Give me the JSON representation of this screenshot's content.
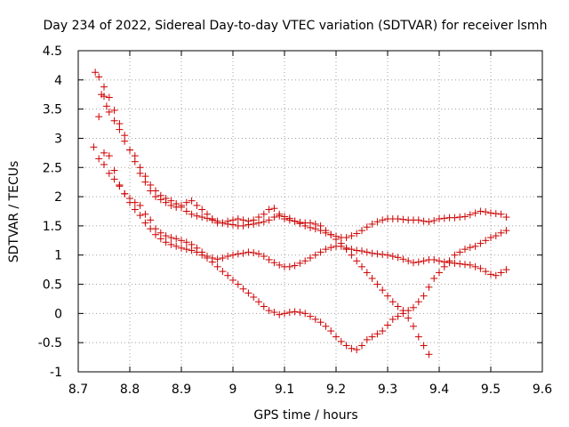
{
  "chart_data": {
    "type": "scatter",
    "title": "Day 234 of 2022, Sidereal Day-to-day VTEC variation (SDTVAR) for receiver lsmh",
    "xlabel": "GPS time / hours",
    "ylabel": "SDTVAR / TECUs",
    "xlim": [
      8.7,
      9.6
    ],
    "ylim": [
      -1,
      4.5
    ],
    "x_ticks": [
      8.7,
      8.8,
      8.9,
      9.0,
      9.1,
      9.2,
      9.3,
      9.4,
      9.5,
      9.6
    ],
    "x_tick_labels": [
      "8.7",
      "8.8",
      "8.9",
      "9",
      "9.1",
      "9.2",
      "9.3",
      "9.4",
      "9.5",
      "9.6"
    ],
    "y_ticks": [
      -1,
      -0.5,
      0,
      0.5,
      1,
      1.5,
      2,
      2.5,
      3,
      3.5,
      4,
      4.5
    ],
    "y_tick_labels": [
      "-1",
      "-0.5",
      "0",
      "0.5",
      "1",
      "1.5",
      "2",
      "2.5",
      "3",
      "3.5",
      "4",
      "4.5"
    ],
    "grid": true,
    "marker": "+",
    "marker_color": "#cc0000",
    "series": [
      {
        "name": "series-1",
        "x": [
          8.733,
          8.74,
          8.75,
          8.76,
          8.77,
          8.78,
          8.79,
          8.8,
          8.81,
          8.82,
          8.83,
          8.84,
          8.85,
          8.86,
          8.87,
          8.88,
          8.89,
          8.9,
          8.91,
          8.92,
          8.93,
          8.94,
          8.95,
          8.96,
          8.97,
          8.98,
          8.99,
          9.0,
          9.01,
          9.02,
          9.03,
          9.04,
          9.05,
          9.06,
          9.07,
          9.08,
          9.09,
          9.1,
          9.11,
          9.12,
          9.13,
          9.14,
          9.15,
          9.16,
          9.17,
          9.18,
          9.19,
          9.2,
          9.21,
          9.22,
          9.23,
          9.24,
          9.25,
          9.26,
          9.27,
          9.28,
          9.29,
          9.3,
          9.31,
          9.32,
          9.33,
          9.34,
          9.35,
          9.36,
          9.37,
          9.38
        ],
        "y": [
          4.13,
          4.05,
          3.88,
          3.7,
          3.48,
          3.25,
          3.05,
          2.8,
          2.6,
          2.4,
          2.25,
          2.1,
          2.0,
          1.95,
          1.9,
          1.85,
          1.82,
          1.85,
          1.9,
          1.93,
          1.85,
          1.78,
          1.7,
          1.62,
          1.55,
          1.55,
          1.58,
          1.6,
          1.62,
          1.6,
          1.58,
          1.6,
          1.65,
          1.7,
          1.78,
          1.8,
          1.7,
          1.62,
          1.6,
          1.58,
          1.56,
          1.55,
          1.55,
          1.53,
          1.5,
          1.42,
          1.35,
          1.27,
          1.2,
          1.1,
          1.0,
          0.9,
          0.8,
          0.7,
          0.6,
          0.5,
          0.4,
          0.3,
          0.2,
          0.12,
          0.05,
          -0.08,
          -0.22,
          -0.4,
          -0.55,
          -0.7
        ]
      },
      {
        "name": "series-2",
        "x": [
          8.74,
          8.745,
          8.75,
          8.755,
          8.76,
          8.77,
          8.78,
          8.79,
          8.8,
          8.81,
          8.82,
          8.83,
          8.84,
          8.85,
          8.86,
          8.87,
          8.88,
          8.89,
          8.9,
          8.91,
          8.92,
          8.93,
          8.94,
          8.95,
          8.96,
          8.97,
          8.98,
          8.99,
          9.0,
          9.01,
          9.02,
          9.03,
          9.04,
          9.05,
          9.06,
          9.07,
          9.08,
          9.09,
          9.1,
          9.11,
          9.12,
          9.13,
          9.14,
          9.15,
          9.16,
          9.17,
          9.18,
          9.19,
          9.2,
          9.21,
          9.22,
          9.23,
          9.24,
          9.25,
          9.26,
          9.27,
          9.28,
          9.29,
          9.3,
          9.31,
          9.32,
          9.33,
          9.34,
          9.35,
          9.36,
          9.37,
          9.38,
          9.39,
          9.4,
          9.41,
          9.42,
          9.43,
          9.44,
          9.45,
          9.46,
          9.47,
          9.48,
          9.49,
          9.5,
          9.51,
          9.52,
          9.53
        ],
        "y": [
          3.37,
          3.75,
          3.72,
          3.55,
          3.45,
          3.3,
          3.15,
          2.95,
          2.8,
          2.7,
          2.5,
          2.35,
          2.2,
          2.1,
          2.02,
          1.97,
          1.93,
          1.88,
          1.82,
          1.75,
          1.7,
          1.67,
          1.65,
          1.63,
          1.6,
          1.58,
          1.55,
          1.53,
          1.52,
          1.5,
          1.5,
          1.52,
          1.53,
          1.55,
          1.57,
          1.6,
          1.65,
          1.67,
          1.66,
          1.63,
          1.58,
          1.54,
          1.5,
          1.47,
          1.45,
          1.42,
          1.38,
          1.35,
          1.32,
          1.3,
          1.3,
          1.33,
          1.37,
          1.42,
          1.48,
          1.53,
          1.57,
          1.6,
          1.62,
          1.62,
          1.62,
          1.61,
          1.6,
          1.6,
          1.6,
          1.58,
          1.57,
          1.59,
          1.62,
          1.63,
          1.64,
          1.64,
          1.65,
          1.66,
          1.69,
          1.72,
          1.75,
          1.74,
          1.72,
          1.71,
          1.7,
          1.65
        ]
      },
      {
        "name": "series-3",
        "x": [
          8.73,
          8.74,
          8.75,
          8.76,
          8.77,
          8.78,
          8.79,
          8.8,
          8.81,
          8.82,
          8.83,
          8.84,
          8.85,
          8.86,
          8.87,
          8.88,
          8.89,
          8.9,
          8.91,
          8.92,
          8.93,
          8.94,
          8.95,
          8.96,
          8.97,
          8.98,
          8.99,
          9.0,
          9.01,
          9.02,
          9.03,
          9.04,
          9.05,
          9.06,
          9.07,
          9.08,
          9.09,
          9.1,
          9.11,
          9.12,
          9.13,
          9.14,
          9.15,
          9.16,
          9.17,
          9.18,
          9.19,
          9.2,
          9.21,
          9.22,
          9.23,
          9.24,
          9.25,
          9.26,
          9.27,
          9.28,
          9.29,
          9.3,
          9.31,
          9.32,
          9.33,
          9.34,
          9.35,
          9.36,
          9.37,
          9.38,
          9.39,
          9.4,
          9.41,
          9.42,
          9.43,
          9.44,
          9.45,
          9.46,
          9.47,
          9.48,
          9.49,
          9.5,
          9.51,
          9.52,
          9.53
        ],
        "y": [
          2.85,
          2.65,
          2.55,
          2.4,
          2.3,
          2.18,
          2.05,
          1.97,
          1.9,
          1.85,
          1.7,
          1.6,
          1.45,
          1.38,
          1.33,
          1.3,
          1.28,
          1.25,
          1.22,
          1.18,
          1.12,
          1.05,
          0.98,
          0.95,
          0.93,
          0.95,
          0.98,
          1.0,
          1.02,
          1.03,
          1.05,
          1.04,
          1.02,
          0.98,
          0.92,
          0.87,
          0.83,
          0.8,
          0.8,
          0.82,
          0.86,
          0.9,
          0.95,
          1.0,
          1.05,
          1.1,
          1.13,
          1.15,
          1.15,
          1.12,
          1.1,
          1.08,
          1.07,
          1.05,
          1.03,
          1.02,
          1.01,
          1.0,
          0.98,
          0.96,
          0.93,
          0.9,
          0.87,
          0.88,
          0.9,
          0.92,
          0.92,
          0.9,
          0.88,
          0.87,
          0.86,
          0.85,
          0.84,
          0.83,
          0.8,
          0.77,
          0.72,
          0.67,
          0.65,
          0.7,
          0.75
        ]
      },
      {
        "name": "series-4",
        "x": [
          8.75,
          8.76,
          8.77,
          8.78,
          8.79,
          8.8,
          8.81,
          8.82,
          8.83,
          8.84,
          8.85,
          8.86,
          8.87,
          8.88,
          8.89,
          8.9,
          8.91,
          8.92,
          8.93,
          8.94,
          8.95,
          8.96,
          8.97,
          8.98,
          8.99,
          9.0,
          9.01,
          9.02,
          9.03,
          9.04,
          9.05,
          9.06,
          9.07,
          9.08,
          9.09,
          9.1,
          9.11,
          9.12,
          9.13,
          9.14,
          9.15,
          9.16,
          9.17,
          9.18,
          9.19,
          9.2,
          9.21,
          9.22,
          9.23,
          9.24,
          9.25,
          9.26,
          9.27,
          9.28,
          9.29,
          9.3,
          9.31,
          9.32,
          9.33,
          9.34,
          9.35,
          9.36,
          9.37,
          9.38,
          9.39,
          9.4,
          9.41,
          9.42,
          9.43,
          9.44,
          9.45,
          9.46,
          9.47,
          9.48,
          9.49,
          9.5,
          9.51,
          9.52,
          9.53
        ],
        "y": [
          2.75,
          2.7,
          2.45,
          2.2,
          2.05,
          1.9,
          1.78,
          1.68,
          1.55,
          1.45,
          1.35,
          1.28,
          1.22,
          1.18,
          1.15,
          1.12,
          1.1,
          1.08,
          1.05,
          1.0,
          0.95,
          0.88,
          0.8,
          0.72,
          0.65,
          0.57,
          0.5,
          0.42,
          0.35,
          0.28,
          0.2,
          0.12,
          0.05,
          0.02,
          -0.02,
          0.0,
          0.02,
          0.03,
          0.02,
          0.0,
          -0.05,
          -0.1,
          -0.15,
          -0.22,
          -0.3,
          -0.4,
          -0.48,
          -0.55,
          -0.6,
          -0.62,
          -0.55,
          -0.45,
          -0.4,
          -0.35,
          -0.3,
          -0.2,
          -0.1,
          -0.05,
          0.0,
          0.05,
          0.1,
          0.2,
          0.3,
          0.45,
          0.6,
          0.7,
          0.8,
          0.9,
          1.0,
          1.05,
          1.1,
          1.13,
          1.15,
          1.2,
          1.25,
          1.3,
          1.33,
          1.38,
          1.42
        ]
      }
    ]
  }
}
